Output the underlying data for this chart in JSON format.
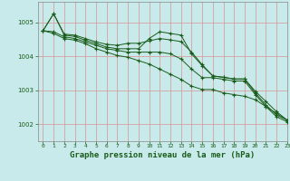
{
  "xlabel": "Graphe pression niveau de la mer (hPa)",
  "background_color": "#c8eaea",
  "plot_bg_color": "#c8eaea",
  "grid_color": "#d8a0a0",
  "line_color": "#1a5c1a",
  "spine_color": "#888888",
  "tick_label_color": "#1a5c1a",
  "xlabel_color": "#1a5c1a",
  "xlim": [
    -0.5,
    23
  ],
  "ylim": [
    1001.5,
    1005.6
  ],
  "yticks": [
    1002,
    1003,
    1004,
    1005
  ],
  "xticks": [
    0,
    1,
    2,
    3,
    4,
    5,
    6,
    7,
    8,
    9,
    10,
    11,
    12,
    13,
    14,
    15,
    16,
    17,
    18,
    19,
    20,
    21,
    22,
    23
  ],
  "series": [
    [
      1004.75,
      1005.25,
      1004.65,
      1004.62,
      1004.52,
      1004.42,
      1004.35,
      1004.32,
      1004.38,
      1004.38,
      1004.45,
      1004.52,
      1004.48,
      1004.43,
      1004.12,
      1003.75,
      1003.42,
      1003.38,
      1003.33,
      1003.33,
      1002.97,
      1002.67,
      1002.37,
      1002.12
    ],
    [
      1004.75,
      1005.25,
      1004.62,
      1004.58,
      1004.47,
      1004.37,
      1004.27,
      1004.22,
      1004.22,
      1004.22,
      1004.52,
      1004.72,
      1004.67,
      1004.62,
      1004.07,
      1003.72,
      1003.42,
      1003.38,
      1003.33,
      1003.33,
      1002.92,
      1002.57,
      1002.27,
      1002.12
    ],
    [
      1004.75,
      1004.72,
      1004.57,
      1004.52,
      1004.42,
      1004.32,
      1004.22,
      1004.17,
      1004.12,
      1004.12,
      1004.12,
      1004.12,
      1004.07,
      1003.92,
      1003.62,
      1003.37,
      1003.37,
      1003.32,
      1003.27,
      1003.27,
      1002.87,
      1002.52,
      1002.22,
      1002.07
    ],
    [
      1004.75,
      1004.67,
      1004.52,
      1004.47,
      1004.37,
      1004.22,
      1004.12,
      1004.02,
      1003.97,
      1003.87,
      1003.77,
      1003.62,
      1003.47,
      1003.32,
      1003.12,
      1003.02,
      1003.02,
      1002.92,
      1002.87,
      1002.82,
      1002.72,
      1002.52,
      1002.32,
      1002.12
    ]
  ]
}
